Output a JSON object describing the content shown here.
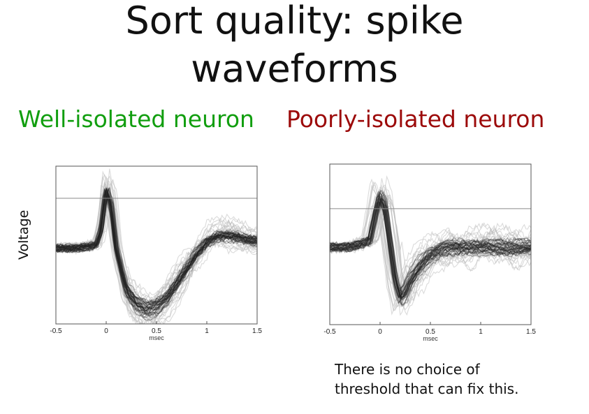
{
  "slide": {
    "title_line1": "Sort quality: spike",
    "title_line2": "waveforms",
    "label_good": "Well-isolated neuron",
    "label_bad": "Poorly-isolated neuron",
    "ylabel": "Voltage",
    "note": "There is no choice of threshold that can fix this."
  },
  "colors": {
    "good": "#119e0f",
    "bad": "#9c0a0a",
    "trace_dark": "#202020",
    "trace_light": "#bdbdbd"
  },
  "chart_data": [
    {
      "type": "line",
      "xlabel": "msec",
      "ylabel": "Voltage",
      "xlim": [
        -0.5,
        1.5
      ],
      "ylim": [
        -1.3,
        1.4
      ],
      "xticks": [
        "-0.5",
        "0",
        "0.5",
        "1",
        "1.5"
      ],
      "threshold": 0.85,
      "grid": false,
      "series": [
        {
          "x": [
            -0.5,
            -0.3,
            -0.1,
            -0.05,
            0.0,
            0.05,
            0.1,
            0.2,
            0.3,
            0.4,
            0.5,
            0.6,
            0.7,
            0.8,
            0.9,
            1.0,
            1.1,
            1.2,
            1.3,
            1.4,
            1.5
          ],
          "values": [
            0.0,
            0.0,
            0.05,
            0.3,
            1.0,
            0.75,
            0.0,
            -0.7,
            -0.95,
            -1.05,
            -1.0,
            -0.85,
            -0.6,
            -0.35,
            -0.1,
            0.1,
            0.2,
            0.22,
            0.2,
            0.15,
            0.12
          ]
        }
      ]
    },
    {
      "type": "line",
      "xlabel": "msec",
      "xlim": [
        -0.5,
        1.5
      ],
      "ylim": [
        -1.3,
        1.4
      ],
      "xticks": [
        "-0.5",
        "0",
        "0.5",
        "1",
        "1.5"
      ],
      "threshold": 0.65,
      "grid": false,
      "series": [
        {
          "x": [
            -0.5,
            -0.3,
            -0.1,
            -0.05,
            0.0,
            0.05,
            0.1,
            0.15,
            0.2,
            0.25,
            0.3,
            0.4,
            0.5,
            0.6,
            0.7,
            0.8,
            0.9,
            1.0,
            1.1,
            1.2,
            1.3,
            1.4,
            1.5
          ],
          "values": [
            0.0,
            0.0,
            0.1,
            0.5,
            0.85,
            0.7,
            0.1,
            -0.5,
            -0.85,
            -0.75,
            -0.55,
            -0.3,
            -0.15,
            -0.05,
            0.0,
            0.0,
            0.0,
            0.0,
            0.0,
            0.0,
            0.0,
            0.0,
            0.0
          ]
        }
      ]
    }
  ]
}
